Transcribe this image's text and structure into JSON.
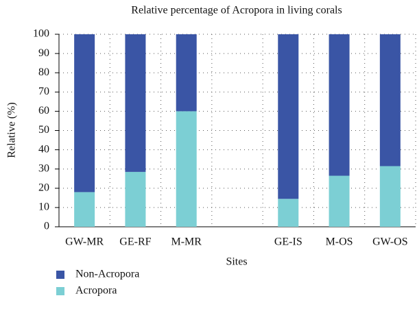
{
  "chart_data": {
    "type": "stacked_bar",
    "title": "Relative percentage of Acropora in living corals",
    "x_label": "Sites",
    "y_label": "Relative (%)",
    "categories": [
      "GW-MR",
      "GE-RF",
      "M-MR",
      null,
      "GE-IS",
      "M-OS",
      "GW-OS"
    ],
    "series": [
      {
        "name": "Acropora",
        "color": "#7ccfd4",
        "values": [
          18,
          28.5,
          60,
          null,
          14.5,
          26.5,
          31.5
        ]
      },
      {
        "name": "Non-Acropora",
        "color": "#3a55a5",
        "values": [
          82,
          71.5,
          40,
          null,
          85.5,
          73.5,
          68.5
        ]
      }
    ],
    "ylim": [
      0,
      100
    ],
    "yticks": [
      0,
      10,
      20,
      30,
      40,
      50,
      60,
      70,
      80,
      90,
      100
    ],
    "grid": true
  }
}
